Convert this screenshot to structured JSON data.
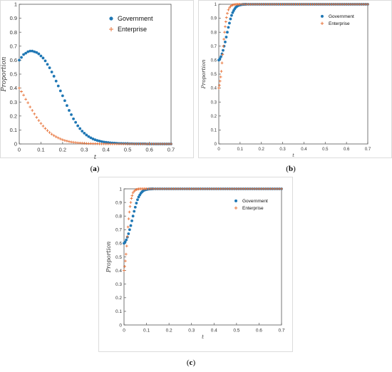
{
  "colors": {
    "government": "#1f77b4",
    "enterprise": "#e8743b"
  },
  "chart_data": [
    {
      "type": "scatter",
      "panel_label_prefix": "(",
      "panel_label_bold": "a",
      "panel_label_suffix": ")",
      "xlabel": "t",
      "ylabel": "Proportion",
      "xlim": [
        0,
        0.7
      ],
      "ylim": [
        0,
        1
      ],
      "x_ticks": [
        "0",
        "0.1",
        "0.2",
        "0.3",
        "0.4",
        "0.5",
        "0.6",
        "0.7"
      ],
      "y_ticks": [
        "0",
        "0.1",
        "0.2",
        "0.3",
        "0.4",
        "0.5",
        "0.6",
        "0.7",
        "0.8",
        "0.9",
        "1"
      ],
      "legend_position": "top-right",
      "series": [
        {
          "name": "Government",
          "marker": "dot",
          "x": [
            0,
            0.01,
            0.02,
            0.03,
            0.04,
            0.05,
            0.06,
            0.07,
            0.08,
            0.09,
            0.1,
            0.11,
            0.12,
            0.13,
            0.14,
            0.15,
            0.16,
            0.17,
            0.18,
            0.19,
            0.2,
            0.21,
            0.22,
            0.23,
            0.24,
            0.25,
            0.26,
            0.27,
            0.28,
            0.29,
            0.3,
            0.31,
            0.32,
            0.33,
            0.34,
            0.35,
            0.36,
            0.37,
            0.38,
            0.39,
            0.4,
            0.41,
            0.42,
            0.43,
            0.44,
            0.45,
            0.46,
            0.47,
            0.48,
            0.49,
            0.5,
            0.51,
            0.52,
            0.53,
            0.54,
            0.55,
            0.56,
            0.57,
            0.58,
            0.59,
            0.6,
            0.61,
            0.62,
            0.63,
            0.64,
            0.65,
            0.66,
            0.67,
            0.68,
            0.69,
            0.7
          ],
          "y": [
            0.6,
            0.62,
            0.64,
            0.65,
            0.66,
            0.665,
            0.665,
            0.66,
            0.655,
            0.645,
            0.63,
            0.615,
            0.595,
            0.57,
            0.545,
            0.515,
            0.485,
            0.45,
            0.415,
            0.38,
            0.345,
            0.31,
            0.275,
            0.24,
            0.21,
            0.18,
            0.155,
            0.13,
            0.11,
            0.092,
            0.077,
            0.064,
            0.053,
            0.044,
            0.036,
            0.03,
            0.025,
            0.021,
            0.017,
            0.014,
            0.012,
            0.01,
            0.008,
            0.007,
            0.006,
            0.005,
            0.004,
            0.004,
            0.003,
            0.003,
            0.002,
            0.002,
            0.002,
            0.001,
            0.001,
            0.001,
            0.001,
            0.001,
            0.001,
            0,
            0,
            0,
            0,
            0,
            0,
            0,
            0,
            0,
            0,
            0,
            0
          ]
        },
        {
          "name": "Enterprise",
          "marker": "plus",
          "x": [
            0,
            0.01,
            0.02,
            0.03,
            0.04,
            0.05,
            0.06,
            0.07,
            0.08,
            0.09,
            0.1,
            0.11,
            0.12,
            0.13,
            0.14,
            0.15,
            0.16,
            0.17,
            0.18,
            0.19,
            0.2,
            0.21,
            0.22,
            0.23,
            0.24,
            0.25,
            0.26,
            0.27,
            0.28,
            0.29,
            0.3,
            0.31,
            0.32,
            0.33,
            0.34,
            0.35,
            0.36,
            0.37,
            0.38,
            0.39,
            0.4,
            0.41,
            0.42,
            0.43,
            0.44,
            0.45,
            0.46,
            0.47,
            0.48,
            0.49,
            0.5,
            0.51,
            0.52,
            0.53,
            0.54,
            0.55,
            0.56,
            0.57,
            0.58,
            0.59,
            0.6,
            0.61,
            0.62,
            0.63,
            0.64,
            0.65,
            0.66,
            0.67,
            0.68,
            0.69,
            0.7
          ],
          "y": [
            0.4,
            0.375,
            0.35,
            0.32,
            0.295,
            0.265,
            0.24,
            0.215,
            0.19,
            0.168,
            0.147,
            0.128,
            0.111,
            0.096,
            0.082,
            0.07,
            0.06,
            0.051,
            0.043,
            0.036,
            0.03,
            0.025,
            0.021,
            0.017,
            0.014,
            0.012,
            0.01,
            0.008,
            0.007,
            0.006,
            0.005,
            0.004,
            0.003,
            0.003,
            0.002,
            0.002,
            0.002,
            0.001,
            0.001,
            0.001,
            0.001,
            0.001,
            0,
            0,
            0,
            0,
            0,
            0,
            0,
            0,
            0,
            0,
            0,
            0,
            0,
            0,
            0,
            0,
            0,
            0,
            0,
            0,
            0,
            0,
            0,
            0,
            0,
            0,
            0,
            0,
            0
          ]
        }
      ]
    },
    {
      "type": "scatter",
      "panel_label_prefix": "(",
      "panel_label_bold": "b",
      "panel_label_suffix": ")",
      "xlabel": "t",
      "ylabel": "Proportion",
      "xlim": [
        0,
        0.7
      ],
      "ylim": [
        0,
        1
      ],
      "x_ticks": [
        "0",
        "0.1",
        "0.2",
        "0.3",
        "0.4",
        "0.5",
        "0.6",
        "0.7"
      ],
      "y_ticks": [
        "0",
        "0.1",
        "0.2",
        "0.3",
        "0.4",
        "0.5",
        "0.6",
        "0.7",
        "0.8",
        "0.9",
        "1"
      ],
      "legend_position": "top-right",
      "series": [
        {
          "name": "Government",
          "marker": "dot",
          "x": [
            0,
            0.005,
            0.01,
            0.015,
            0.02,
            0.025,
            0.03,
            0.035,
            0.04,
            0.045,
            0.05,
            0.055,
            0.06,
            0.065,
            0.07,
            0.075,
            0.08,
            0.085,
            0.09,
            0.095,
            0.1,
            0.105,
            0.11,
            0.115,
            0.12,
            0.125,
            0.13,
            0.14,
            0.15,
            0.16,
            0.17,
            0.18,
            0.19,
            0.2,
            0.21,
            0.22,
            0.23,
            0.24,
            0.25,
            0.26,
            0.27,
            0.28,
            0.29,
            0.3,
            0.31,
            0.32,
            0.33,
            0.34,
            0.35,
            0.36,
            0.37,
            0.38,
            0.39,
            0.4,
            0.41,
            0.42,
            0.43,
            0.44,
            0.45,
            0.46,
            0.47,
            0.48,
            0.49,
            0.5,
            0.51,
            0.52,
            0.53,
            0.54,
            0.55,
            0.56,
            0.57,
            0.58,
            0.59,
            0.6,
            0.61,
            0.62,
            0.63,
            0.64,
            0.65,
            0.66,
            0.67,
            0.68,
            0.69,
            0.7
          ],
          "y": [
            0.6,
            0.61,
            0.625,
            0.645,
            0.67,
            0.7,
            0.73,
            0.765,
            0.8,
            0.835,
            0.865,
            0.895,
            0.92,
            0.94,
            0.955,
            0.968,
            0.978,
            0.985,
            0.99,
            0.993,
            0.995,
            0.997,
            0.998,
            0.999,
            0.999,
            1,
            1,
            1,
            1,
            1,
            1,
            1,
            1,
            1,
            1,
            1,
            1,
            1,
            1,
            1,
            1,
            1,
            1,
            1,
            1,
            1,
            1,
            1,
            1,
            1,
            1,
            1,
            1,
            1,
            1,
            1,
            1,
            1,
            1,
            1,
            1,
            1,
            1,
            1,
            1,
            1,
            1,
            1,
            1,
            1,
            1,
            1,
            1,
            1,
            1,
            1,
            1,
            1,
            1,
            1,
            1,
            1,
            1,
            1
          ]
        },
        {
          "name": "Enterprise",
          "marker": "plus",
          "x": [
            0,
            0.003,
            0.006,
            0.009,
            0.012,
            0.015,
            0.018,
            0.021,
            0.024,
            0.027,
            0.03,
            0.033,
            0.036,
            0.04,
            0.045,
            0.05,
            0.055,
            0.06,
            0.065,
            0.07,
            0.075,
            0.08,
            0.085,
            0.09,
            0.095,
            0.1,
            0.11,
            0.12,
            0.13,
            0.14,
            0.15,
            0.16,
            0.17,
            0.18,
            0.19,
            0.2,
            0.21,
            0.22,
            0.23,
            0.24,
            0.25,
            0.26,
            0.27,
            0.28,
            0.29,
            0.3,
            0.31,
            0.32,
            0.33,
            0.34,
            0.35,
            0.36,
            0.37,
            0.38,
            0.39,
            0.4,
            0.41,
            0.42,
            0.43,
            0.44,
            0.45,
            0.46,
            0.47,
            0.48,
            0.49,
            0.5,
            0.51,
            0.52,
            0.53,
            0.54,
            0.55,
            0.56,
            0.57,
            0.58,
            0.59,
            0.6,
            0.61,
            0.62,
            0.63,
            0.64,
            0.65,
            0.66,
            0.67,
            0.68,
            0.69,
            0.7
          ],
          "y": [
            0.4,
            0.42,
            0.45,
            0.48,
            0.52,
            0.58,
            0.64,
            0.7,
            0.75,
            0.8,
            0.84,
            0.875,
            0.905,
            0.935,
            0.96,
            0.975,
            0.985,
            0.991,
            0.995,
            0.997,
            0.998,
            0.999,
            1,
            1,
            1,
            1,
            1,
            1,
            1,
            1,
            1,
            1,
            1,
            1,
            1,
            1,
            1,
            1,
            1,
            1,
            1,
            1,
            1,
            1,
            1,
            1,
            1,
            1,
            1,
            1,
            1,
            1,
            1,
            1,
            1,
            1,
            1,
            1,
            1,
            1,
            1,
            1,
            1,
            1,
            1,
            1,
            1,
            1,
            1,
            1,
            1,
            1,
            1,
            1,
            1,
            1,
            1,
            1,
            1,
            1,
            1,
            1,
            1,
            1,
            1,
            1
          ]
        }
      ]
    },
    {
      "type": "scatter",
      "panel_label_prefix": "(",
      "panel_label_bold": "c",
      "panel_label_suffix": ")",
      "xlabel": "t",
      "ylabel": "Proportion",
      "xlim": [
        0,
        0.7
      ],
      "ylim": [
        0,
        1
      ],
      "x_ticks": [
        "0",
        "0.1",
        "0.2",
        "0.3",
        "0.4",
        "0.5",
        "0.6",
        "0.7"
      ],
      "y_ticks": [
        "0",
        "0.1",
        "0.2",
        "0.3",
        "0.4",
        "0.5",
        "0.6",
        "0.7",
        "0.8",
        "0.9",
        "1"
      ],
      "legend_position": "top-right",
      "series": [
        {
          "name": "Government",
          "marker": "dot",
          "x": [
            0,
            0.005,
            0.01,
            0.015,
            0.02,
            0.025,
            0.03,
            0.035,
            0.04,
            0.045,
            0.05,
            0.055,
            0.06,
            0.065,
            0.07,
            0.075,
            0.08,
            0.085,
            0.09,
            0.095,
            0.1,
            0.105,
            0.11,
            0.115,
            0.12,
            0.125,
            0.13,
            0.14,
            0.15,
            0.16,
            0.17,
            0.18,
            0.19,
            0.2,
            0.21,
            0.22,
            0.23,
            0.24,
            0.25,
            0.26,
            0.27,
            0.28,
            0.29,
            0.3,
            0.31,
            0.32,
            0.33,
            0.34,
            0.35,
            0.36,
            0.37,
            0.38,
            0.39,
            0.4,
            0.41,
            0.42,
            0.43,
            0.44,
            0.45,
            0.46,
            0.47,
            0.48,
            0.49,
            0.5,
            0.51,
            0.52,
            0.53,
            0.54,
            0.55,
            0.56,
            0.57,
            0.58,
            0.59,
            0.6,
            0.61,
            0.62,
            0.63,
            0.64,
            0.65,
            0.66,
            0.67,
            0.68,
            0.69,
            0.7
          ],
          "y": [
            0.6,
            0.61,
            0.625,
            0.645,
            0.67,
            0.7,
            0.73,
            0.765,
            0.8,
            0.835,
            0.865,
            0.895,
            0.92,
            0.94,
            0.955,
            0.968,
            0.978,
            0.985,
            0.99,
            0.993,
            0.995,
            0.997,
            0.998,
            0.999,
            0.999,
            1,
            1,
            1,
            1,
            1,
            1,
            1,
            1,
            1,
            1,
            1,
            1,
            1,
            1,
            1,
            1,
            1,
            1,
            1,
            1,
            1,
            1,
            1,
            1,
            1,
            1,
            1,
            1,
            1,
            1,
            1,
            1,
            1,
            1,
            1,
            1,
            1,
            1,
            1,
            1,
            1,
            1,
            1,
            1,
            1,
            1,
            1,
            1,
            1,
            1,
            1,
            1,
            1,
            1,
            1,
            1,
            1,
            1,
            1
          ]
        },
        {
          "name": "Enterprise",
          "marker": "plus",
          "x": [
            0,
            0.003,
            0.006,
            0.009,
            0.012,
            0.015,
            0.018,
            0.021,
            0.024,
            0.027,
            0.03,
            0.033,
            0.036,
            0.04,
            0.045,
            0.05,
            0.055,
            0.06,
            0.065,
            0.07,
            0.075,
            0.08,
            0.085,
            0.09,
            0.095,
            0.1,
            0.11,
            0.12,
            0.13,
            0.14,
            0.15,
            0.16,
            0.17,
            0.18,
            0.19,
            0.2,
            0.21,
            0.22,
            0.23,
            0.24,
            0.25,
            0.26,
            0.27,
            0.28,
            0.29,
            0.3,
            0.31,
            0.32,
            0.33,
            0.34,
            0.35,
            0.36,
            0.37,
            0.38,
            0.39,
            0.4,
            0.41,
            0.42,
            0.43,
            0.44,
            0.45,
            0.46,
            0.47,
            0.48,
            0.49,
            0.5,
            0.51,
            0.52,
            0.53,
            0.54,
            0.55,
            0.56,
            0.57,
            0.58,
            0.59,
            0.6,
            0.61,
            0.62,
            0.63,
            0.64,
            0.65,
            0.66,
            0.67,
            0.68,
            0.69,
            0.7
          ],
          "y": [
            0.4,
            0.43,
            0.47,
            0.52,
            0.58,
            0.65,
            0.72,
            0.78,
            0.83,
            0.87,
            0.9,
            0.93,
            0.95,
            0.97,
            0.983,
            0.99,
            0.995,
            0.997,
            0.999,
            1,
            1,
            1,
            1,
            1,
            1,
            1,
            1,
            1,
            1,
            1,
            1,
            1,
            1,
            1,
            1,
            1,
            1,
            1,
            1,
            1,
            1,
            1,
            1,
            1,
            1,
            1,
            1,
            1,
            1,
            1,
            1,
            1,
            1,
            1,
            1,
            1,
            1,
            1,
            1,
            1,
            1,
            1,
            1,
            1,
            1,
            1,
            1,
            1,
            1,
            1,
            1,
            1,
            1,
            1,
            1,
            1,
            1,
            1,
            1,
            1,
            1,
            1,
            1,
            1,
            1,
            1
          ]
        }
      ]
    }
  ]
}
